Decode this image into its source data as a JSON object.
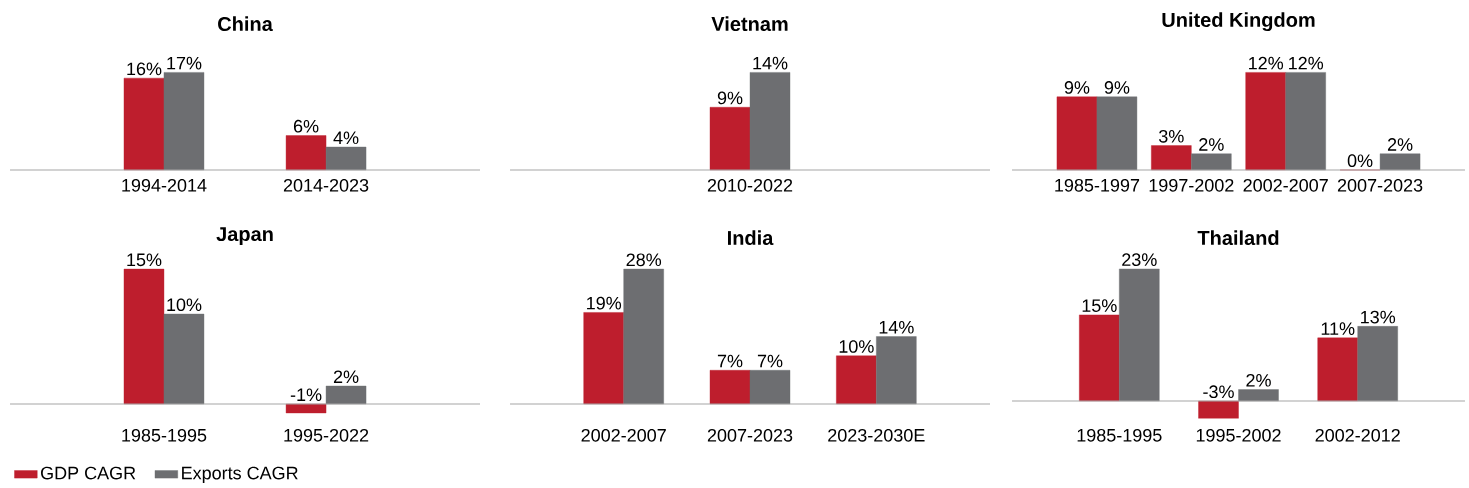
{
  "chart_data": [
    {
      "type": "bar",
      "title": "China",
      "categories": [
        "1994-2014",
        "2014-2023"
      ],
      "series": [
        {
          "color": "#be1e2d",
          "values": [
            16,
            6
          ],
          "value_labels": [
            "16%",
            "6%"
          ]
        },
        {
          "color": "#6d6e71",
          "values": [
            17,
            4
          ],
          "value_labels": [
            "17%",
            "4%"
          ]
        }
      ]
    },
    {
      "type": "bar",
      "title": "Vietnam",
      "categories": [
        "2010-2022"
      ],
      "series": [
        {
          "color": "#be1e2d",
          "values": [
            9
          ],
          "value_labels": [
            "9%"
          ]
        },
        {
          "color": "#6d6e71",
          "values": [
            14
          ],
          "value_labels": [
            "14%"
          ]
        }
      ]
    },
    {
      "type": "bar",
      "title": "United Kingdom",
      "categories": [
        "1985-1997",
        "1997-2002",
        "2002-2007",
        "2007-2023"
      ],
      "series": [
        {
          "color": "#be1e2d",
          "values": [
            9,
            3,
            12,
            0
          ],
          "value_labels": [
            "9%",
            "3%",
            "12%",
            "0%"
          ]
        },
        {
          "color": "#6d6e71",
          "values": [
            9,
            2,
            12,
            2
          ],
          "value_labels": [
            "9%",
            "2%",
            "12%",
            "2%"
          ]
        }
      ]
    },
    {
      "type": "bar",
      "title": "Japan",
      "categories": [
        "1985-1995",
        "1995-2022"
      ],
      "legend": "bottom",
      "series": [
        {
          "name": "GDP CAGR",
          "color": "#be1e2d",
          "values": [
            15,
            -1
          ],
          "value_labels": [
            "15%",
            "-1%"
          ]
        },
        {
          "name": "Exports CAGR",
          "color": "#6d6e71",
          "values": [
            10,
            2
          ],
          "value_labels": [
            "10%",
            "2%"
          ]
        }
      ]
    },
    {
      "type": "bar",
      "title": "India",
      "categories": [
        "2002-2007",
        "2007-2023",
        "2023-2030E"
      ],
      "series": [
        {
          "color": "#be1e2d",
          "values": [
            19,
            7,
            10
          ],
          "value_labels": [
            "19%",
            "7%",
            "10%"
          ]
        },
        {
          "color": "#6d6e71",
          "values": [
            28,
            7,
            14
          ],
          "value_labels": [
            "28%",
            "7%",
            "14%"
          ]
        }
      ]
    },
    {
      "type": "bar",
      "title": "Thailand",
      "categories": [
        "1985-1995",
        "1995-2002",
        "2002-2012"
      ],
      "series": [
        {
          "color": "#be1e2d",
          "values": [
            15,
            -3,
            11
          ],
          "value_labels": [
            "15%",
            "-3%",
            "11%"
          ]
        },
        {
          "color": "#6d6e71",
          "values": [
            23,
            2,
            13
          ],
          "value_labels": [
            "23%",
            "2%",
            "13%"
          ]
        }
      ]
    }
  ]
}
